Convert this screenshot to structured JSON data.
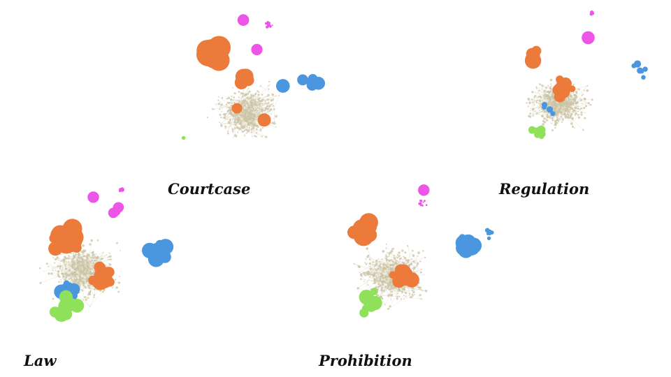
{
  "panels": [
    {
      "label": "Courtcase"
    },
    {
      "label": "Regulation"
    },
    {
      "label": "Law"
    },
    {
      "label": "Prohibition"
    }
  ],
  "colors": {
    "background_node": "#c9c3a6",
    "background_edge": "#d8d2b8",
    "orange_cluster": "#ec7a3b",
    "blue_cluster": "#4a97e0",
    "green_cluster": "#8fe05a",
    "magenta_cluster": "#ec55e8",
    "label_text": "#111111"
  }
}
